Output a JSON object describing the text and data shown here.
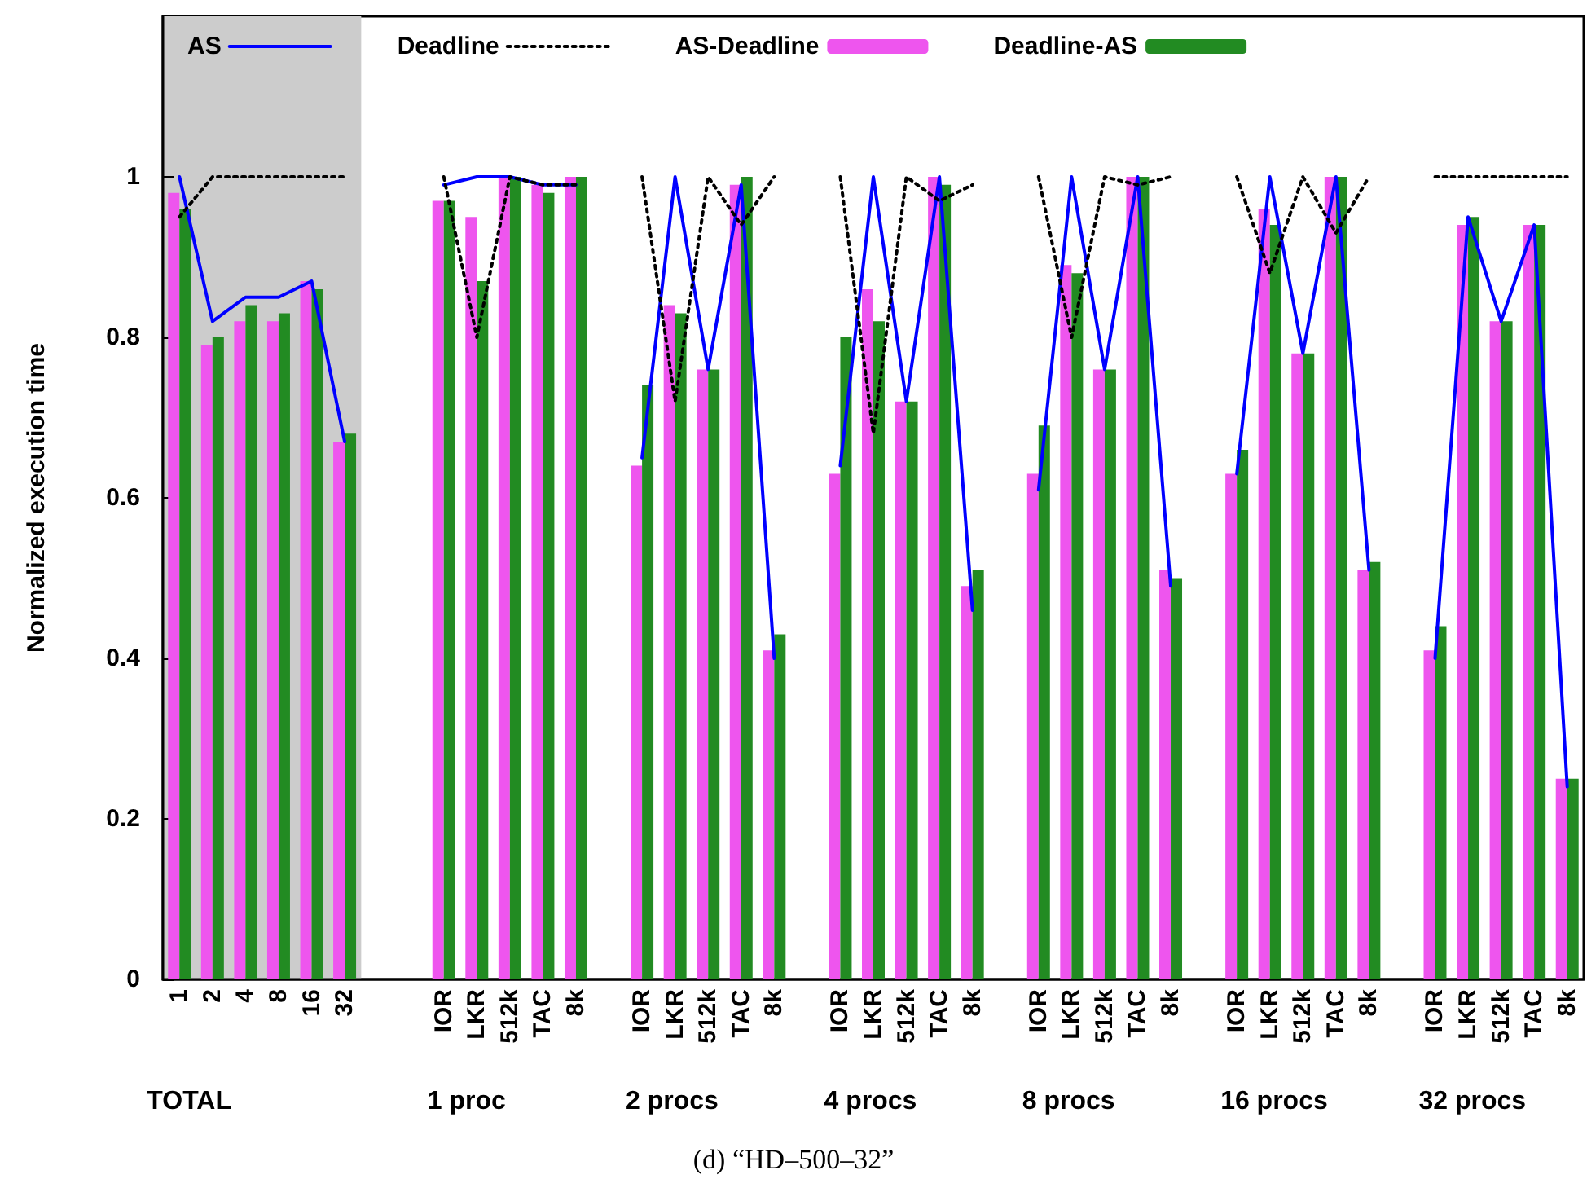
{
  "chart_data": {
    "type": "bar",
    "ylabel": "Normalized execution time",
    "ylim": [
      0,
      1.2
    ],
    "yticks": [
      0,
      0.2,
      0.4,
      0.6,
      0.8,
      1
    ],
    "legend": "top",
    "marker": "none",
    "categories": [
      "1",
      "2",
      "4",
      "8",
      "16",
      "32",
      null,
      null,
      "IOR",
      "LKR",
      "512k",
      "TAC",
      "8k",
      null,
      "IOR",
      "LKR",
      "512k",
      "TAC",
      "8k",
      null,
      "IOR",
      "LKR",
      "512k",
      "TAC",
      "8k",
      null,
      "IOR",
      "LKR",
      "512k",
      "TAC",
      "8k",
      null,
      "IOR",
      "LKR",
      "512k",
      "TAC",
      "8k",
      null,
      "IOR",
      "LKR",
      "512k",
      "TAC",
      "8k"
    ],
    "series": [
      {
        "name": "AS",
        "type": "line",
        "line_style": "solid",
        "color": "#0000ff",
        "values": [
          1.0,
          0.82,
          0.85,
          0.85,
          0.87,
          0.67,
          null,
          null,
          0.99,
          1.0,
          1.0,
          0.99,
          0.99,
          null,
          0.65,
          1.0,
          0.76,
          0.99,
          0.4,
          null,
          0.64,
          1.0,
          0.72,
          1.0,
          0.46,
          null,
          0.61,
          1.0,
          0.76,
          1.0,
          0.49,
          null,
          0.63,
          1.0,
          0.78,
          1.0,
          0.51,
          null,
          0.4,
          0.95,
          0.82,
          0.94,
          0.24
        ]
      },
      {
        "name": "Deadline",
        "type": "line",
        "line_style": "dotted",
        "color": "#000000",
        "values": [
          0.95,
          1.0,
          1.0,
          1.0,
          1.0,
          1.0,
          null,
          null,
          1.0,
          0.8,
          1.0,
          0.99,
          0.99,
          null,
          1.0,
          0.72,
          1.0,
          0.94,
          1.0,
          null,
          1.0,
          0.68,
          1.0,
          0.97,
          0.99,
          null,
          1.0,
          0.8,
          1.0,
          0.99,
          1.0,
          null,
          1.0,
          0.88,
          1.0,
          0.93,
          1.0,
          null,
          1.0,
          1.0,
          1.0,
          1.0,
          1.0
        ]
      },
      {
        "name": "AS-Deadline",
        "color": "#ee55ee",
        "values": [
          0.98,
          0.79,
          0.82,
          0.82,
          0.87,
          0.67,
          null,
          null,
          0.97,
          0.95,
          1.0,
          0.99,
          1.0,
          null,
          0.64,
          0.84,
          0.76,
          0.99,
          0.41,
          null,
          0.63,
          0.86,
          0.72,
          1.0,
          0.49,
          null,
          0.63,
          0.89,
          0.76,
          1.0,
          0.51,
          null,
          0.63,
          0.96,
          0.78,
          1.0,
          0.51,
          null,
          0.41,
          0.94,
          0.82,
          0.94,
          0.25
        ]
      },
      {
        "name": "Deadline-AS",
        "color": "#228b22",
        "values": [
          0.96,
          0.8,
          0.84,
          0.83,
          0.86,
          0.68,
          null,
          null,
          0.97,
          0.87,
          1.0,
          0.98,
          1.0,
          null,
          0.74,
          0.83,
          0.76,
          1.0,
          0.43,
          null,
          0.8,
          0.82,
          0.72,
          0.99,
          0.51,
          null,
          0.69,
          0.88,
          0.76,
          1.0,
          0.5,
          null,
          0.66,
          0.94,
          0.78,
          1.0,
          0.52,
          null,
          0.44,
          0.95,
          0.82,
          0.94,
          0.25
        ]
      }
    ],
    "bands": [
      {
        "axis": "x",
        "from": "1",
        "to": "32",
        "color": "#cccccc"
      }
    ],
    "annotations": [
      "TOTAL",
      "1 proc",
      "2 procs",
      "4 procs",
      "8 procs",
      "16 procs",
      "32 procs",
      "(d) “HD–500–32”"
    ]
  }
}
